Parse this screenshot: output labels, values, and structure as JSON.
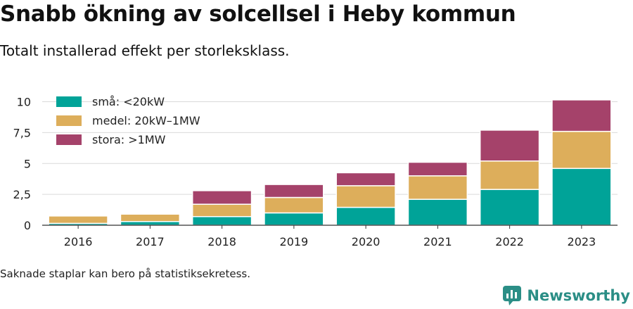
{
  "header": {
    "title": "Snabb ökning av solcellsel i Heby kommun",
    "subtitle": "Totalt installerad effekt per storleksklass."
  },
  "footnote": "Saknade staplar kan bero på statistiksekretess.",
  "brand": {
    "name": "Newsworthy",
    "icon": "bar-chart-logo-icon"
  },
  "colors": {
    "small": "#00a398",
    "medium": "#ddae5b",
    "large": "#a5426a",
    "grid": "#d9d9d9",
    "axis": "#333333"
  },
  "chart_data": {
    "type": "bar",
    "stacked": true,
    "categories": [
      "2016",
      "2017",
      "2018",
      "2019",
      "2020",
      "2021",
      "2022",
      "2023"
    ],
    "series": [
      {
        "name": "små: <20kW",
        "color": "#00a398",
        "values": [
          0.15,
          0.3,
          0.7,
          1.0,
          1.45,
          2.1,
          2.9,
          4.6
        ]
      },
      {
        "name": "medel: 20kW–1MW",
        "color": "#ddae5b",
        "values": [
          0.6,
          0.6,
          1.0,
          1.25,
          1.75,
          1.9,
          2.3,
          3.0
        ]
      },
      {
        "name": "stora: >1MW",
        "color": "#a5426a",
        "values": [
          0,
          0,
          1.1,
          1.05,
          1.05,
          1.1,
          2.5,
          2.55
        ]
      }
    ],
    "yticks": [
      0,
      2.5,
      5,
      7.5,
      10
    ],
    "ytick_labels": [
      "0",
      "2,5",
      "5",
      "7,5",
      "10"
    ],
    "ylim": [
      0,
      10.6
    ],
    "grid": true,
    "legend": "top-left"
  }
}
